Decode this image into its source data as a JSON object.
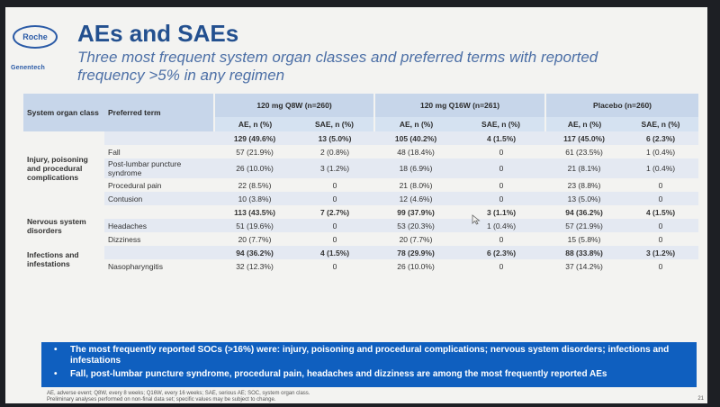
{
  "slide": {
    "logo_roche": "Roche",
    "logo_genentech": "Genentech",
    "title": "AEs and SAEs",
    "subtitle": "Three most frequent system organ classes and preferred terms with reported frequency >5% in any regimen"
  },
  "table": {
    "header": {
      "soc": "System organ class",
      "pt": "Preferred term",
      "group1": "120 mg Q8W (n=260)",
      "group2": "120 mg Q16W (n=261)",
      "group3": "Placebo (n=260)",
      "ae": "AE, n (%)",
      "sae": "SAE, n (%)"
    },
    "groups": [
      {
        "soc": "Injury, poisoning and procedural complications",
        "total": [
          "129 (49.6%)",
          "13 (5.0%)",
          "105 (40.2%)",
          "4 (1.5%)",
          "117 (45.0%)",
          "6 (2.3%)"
        ],
        "rows": [
          {
            "pt": "Fall",
            "v": [
              "57 (21.9%)",
              "2 (0.8%)",
              "48 (18.4%)",
              "0",
              "61 (23.5%)",
              "1 (0.4%)"
            ]
          },
          {
            "pt": "Post-lumbar puncture syndrome",
            "v": [
              "26 (10.0%)",
              "3 (1.2%)",
              "18 (6.9%)",
              "0",
              "21 (8.1%)",
              "1 (0.4%)"
            ]
          },
          {
            "pt": "Procedural pain",
            "v": [
              "22 (8.5%)",
              "0",
              "21 (8.0%)",
              "0",
              "23 (8.8%)",
              "0"
            ]
          },
          {
            "pt": "Contusion",
            "v": [
              "10 (3.8%)",
              "0",
              "12 (4.6%)",
              "0",
              "13 (5.0%)",
              "0"
            ]
          }
        ]
      },
      {
        "soc": "Nervous system disorders",
        "total": [
          "113 (43.5%)",
          "7 (2.7%)",
          "99 (37.9%)",
          "3 (1.1%)",
          "94 (36.2%)",
          "4 (1.5%)"
        ],
        "rows": [
          {
            "pt": "Headaches",
            "v": [
              "51 (19.6%)",
              "0",
              "53 (20.3%)",
              "1 (0.4%)",
              "57 (21.9%)",
              "0"
            ]
          },
          {
            "pt": "Dizziness",
            "v": [
              "20 (7.7%)",
              "0",
              "20 (7.7%)",
              "0",
              "15 (5.8%)",
              "0"
            ]
          }
        ]
      },
      {
        "soc": "Infections and infestations",
        "total": [
          "94 (36.2%)",
          "4 (1.5%)",
          "78 (29.9%)",
          "6 (2.3%)",
          "88 (33.8%)",
          "3 (1.2%)"
        ],
        "rows": [
          {
            "pt": "Nasopharyngitis",
            "v": [
              "32 (12.3%)",
              "0",
              "26 (10.0%)",
              "0",
              "37 (14.2%)",
              "0"
            ]
          }
        ]
      }
    ]
  },
  "banner": {
    "bullet_1": "The most frequently reported SOCs (>16%) were: injury, poisoning and procedural complications; nervous system disorders; infections and infestations",
    "bullet_2": "Fall, post-lumbar puncture syndrome, procedural pain, headaches and dizziness are among the most frequently reported AEs"
  },
  "footnote": {
    "line1": "AE, adverse event; Q8W, every 8 weeks; Q16W, every 16 weeks; SAE, serious AE; SOC, system organ class.",
    "line2": "Preliminary analyses performed on non-final data set; specific values may be subject to change."
  },
  "page_number": "21",
  "icons": {
    "cursor": "mouse-pointer-icon"
  },
  "colors": {
    "title": "#23508f",
    "banner": "#0f5fbf",
    "header": "#c7d6ea"
  }
}
